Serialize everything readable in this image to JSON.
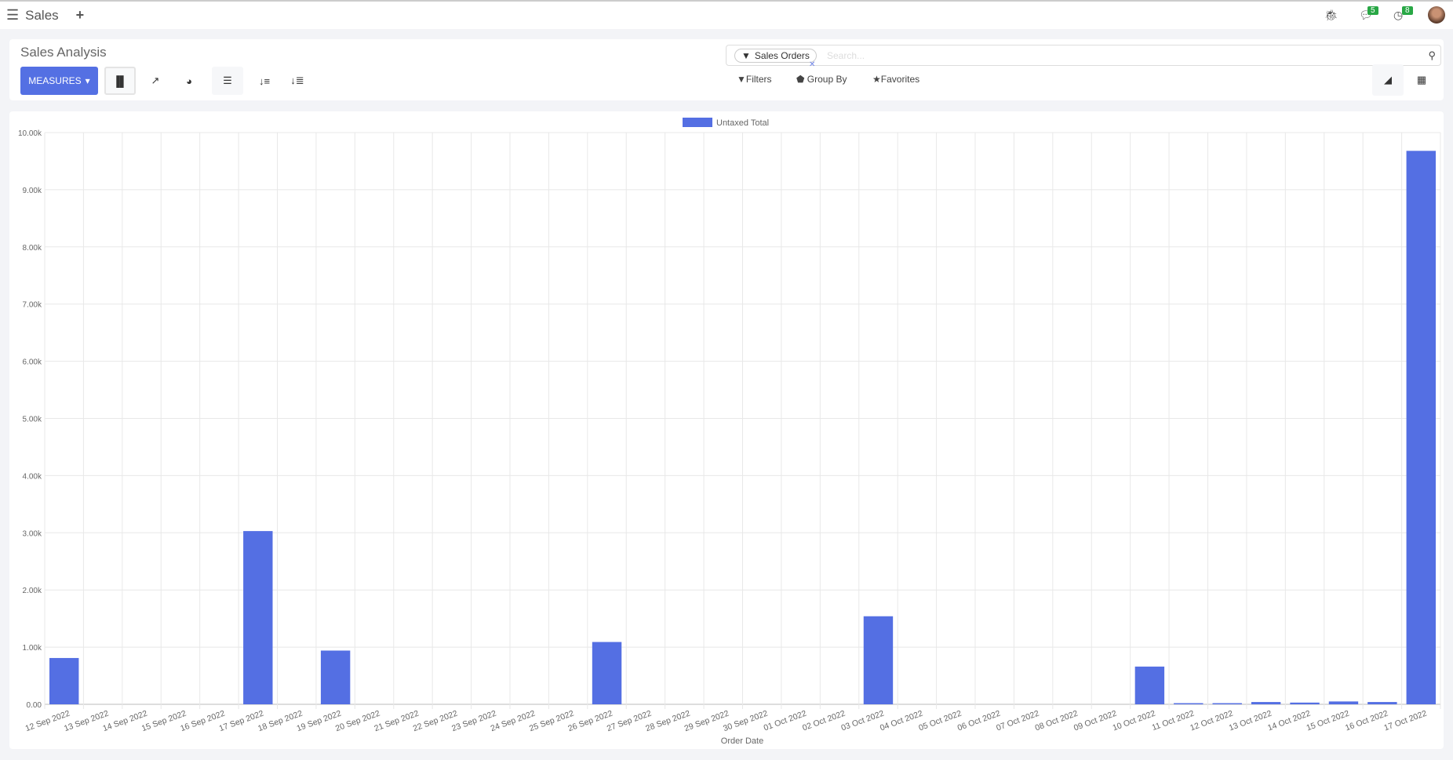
{
  "nav": {
    "app_name": "Sales",
    "messages_count": "5",
    "activities_count": "8"
  },
  "control": {
    "title": "Sales Analysis",
    "measures_label": "MEASURES",
    "facet_label": "Sales Orders",
    "search_placeholder": "Search...",
    "filters_label": "Filters",
    "groupby_label": "Group By",
    "favorites_label": "Favorites"
  },
  "colors": {
    "accent": "#5470e3",
    "bar": "#546fe3",
    "badge": "#28a745"
  },
  "chart_data": {
    "type": "bar",
    "legend": "Untaxed Total",
    "legend_placement": "top",
    "xlabel": "Order Date",
    "ylabel": "",
    "ylim": [
      0,
      10000
    ],
    "yticks": [
      "0.00",
      "1.00k",
      "2.00k",
      "3.00k",
      "4.00k",
      "5.00k",
      "6.00k",
      "7.00k",
      "8.00k",
      "9.00k",
      "10.00k"
    ],
    "grid": true,
    "categories": [
      "12 Sep 2022",
      "13 Sep 2022",
      "14 Sep 2022",
      "15 Sep 2022",
      "16 Sep 2022",
      "17 Sep 2022",
      "18 Sep 2022",
      "19 Sep 2022",
      "20 Sep 2022",
      "21 Sep 2022",
      "22 Sep 2022",
      "23 Sep 2022",
      "24 Sep 2022",
      "25 Sep 2022",
      "26 Sep 2022",
      "27 Sep 2022",
      "28 Sep 2022",
      "29 Sep 2022",
      "30 Sep 2022",
      "01 Oct 2022",
      "02 Oct 2022",
      "03 Oct 2022",
      "04 Oct 2022",
      "05 Oct 2022",
      "06 Oct 2022",
      "07 Oct 2022",
      "08 Oct 2022",
      "09 Oct 2022",
      "10 Oct 2022",
      "11 Oct 2022",
      "12 Oct 2022",
      "13 Oct 2022",
      "14 Oct 2022",
      "15 Oct 2022",
      "16 Oct 2022",
      "17 Oct 2022"
    ],
    "values": [
      810,
      0,
      0,
      0,
      0,
      3030,
      0,
      940,
      0,
      0,
      0,
      0,
      0,
      0,
      1090,
      0,
      0,
      0,
      0,
      0,
      0,
      1540,
      0,
      0,
      0,
      0,
      0,
      0,
      660,
      20,
      20,
      40,
      30,
      50,
      40,
      9680
    ]
  }
}
